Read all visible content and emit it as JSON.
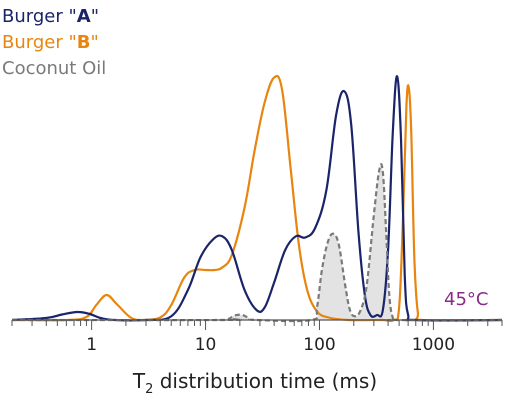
{
  "chart_data": {
    "type": "line",
    "x_scale": "log",
    "xlim": [
      0.2,
      4000
    ],
    "ylim": [
      0,
      1.0
    ],
    "x_ticks": [
      1,
      10,
      100,
      1000
    ],
    "x_tick_labels": [
      "1",
      "10",
      "100",
      "1000"
    ],
    "xlabel_main": "T",
    "xlabel_sub": "2",
    "xlabel_rest": " distribution time (ms)",
    "annotation": "45°C",
    "legend": [
      {
        "prefix": "Burger \"",
        "bold": "A",
        "suffix": "\"",
        "color": "#1a2469"
      },
      {
        "prefix": "Burger \"",
        "bold": "B",
        "suffix": "\"",
        "color": "#e8850f"
      },
      {
        "prefix": "Coconut Oil",
        "bold": "",
        "suffix": "",
        "color": "#7a7a7a"
      }
    ],
    "series": [
      {
        "name": "Burger \"A\"",
        "color": "#1a2469",
        "style": "solid",
        "points": [
          [
            0.2,
            0
          ],
          [
            0.4,
            0.008
          ],
          [
            0.55,
            0.022
          ],
          [
            0.75,
            0.032
          ],
          [
            0.95,
            0.025
          ],
          [
            1.2,
            0.008
          ],
          [
            1.6,
            0
          ],
          [
            3,
            0
          ],
          [
            5,
            0.015
          ],
          [
            7,
            0.12
          ],
          [
            9,
            0.25
          ],
          [
            11.5,
            0.32
          ],
          [
            14,
            0.335
          ],
          [
            17,
            0.28
          ],
          [
            22,
            0.12
          ],
          [
            28,
            0.04
          ],
          [
            33,
            0.05
          ],
          [
            40,
            0.15
          ],
          [
            50,
            0.28
          ],
          [
            62,
            0.335
          ],
          [
            75,
            0.33
          ],
          [
            92,
            0.37
          ],
          [
            115,
            0.52
          ],
          [
            140,
            0.82
          ],
          [
            165,
            0.915
          ],
          [
            190,
            0.78
          ],
          [
            220,
            0.35
          ],
          [
            250,
            0.1
          ],
          [
            280,
            0.02
          ],
          [
            320,
            0.02
          ],
          [
            360,
            0.04
          ],
          [
            400,
            0.28
          ],
          [
            440,
            0.75
          ],
          [
            480,
            0.975
          ],
          [
            520,
            0.72
          ],
          [
            560,
            0.18
          ],
          [
            600,
            0.02
          ],
          [
            700,
            0
          ],
          [
            4000,
            0
          ]
        ]
      },
      {
        "name": "Burger \"B\"",
        "color": "#e8850f",
        "style": "solid",
        "points": [
          [
            0.2,
            0
          ],
          [
            0.6,
            0
          ],
          [
            0.9,
            0.012
          ],
          [
            1.1,
            0.06
          ],
          [
            1.35,
            0.1
          ],
          [
            1.65,
            0.065
          ],
          [
            2.2,
            0.01
          ],
          [
            2.8,
            0
          ],
          [
            4,
            0.01
          ],
          [
            5,
            0.06
          ],
          [
            6.5,
            0.17
          ],
          [
            8,
            0.2
          ],
          [
            10,
            0.2
          ],
          [
            12,
            0.2
          ],
          [
            14,
            0.21
          ],
          [
            17,
            0.26
          ],
          [
            22,
            0.45
          ],
          [
            27,
            0.68
          ],
          [
            33,
            0.87
          ],
          [
            40,
            0.97
          ],
          [
            47,
            0.92
          ],
          [
            56,
            0.6
          ],
          [
            66,
            0.3
          ],
          [
            78,
            0.12
          ],
          [
            95,
            0.035
          ],
          [
            120,
            0.01
          ],
          [
            180,
            0
          ],
          [
            350,
            0
          ],
          [
            450,
            0
          ],
          [
            500,
            0.05
          ],
          [
            540,
            0.4
          ],
          [
            580,
            0.86
          ],
          [
            610,
            0.925
          ],
          [
            640,
            0.74
          ],
          [
            680,
            0.25
          ],
          [
            730,
            0.03
          ],
          [
            800,
            0
          ],
          [
            4000,
            0
          ]
        ]
      },
      {
        "name": "Coconut Oil",
        "color": "#7a7a7a",
        "style": "dashed",
        "filled": true,
        "points": [
          [
            0.2,
            0
          ],
          [
            14,
            0
          ],
          [
            16,
            0.005
          ],
          [
            18,
            0.018
          ],
          [
            21,
            0.02
          ],
          [
            24,
            0.008
          ],
          [
            28,
            0
          ],
          [
            85,
            0
          ],
          [
            95,
            0.05
          ],
          [
            105,
            0.2
          ],
          [
            118,
            0.31
          ],
          [
            132,
            0.345
          ],
          [
            148,
            0.3
          ],
          [
            168,
            0.14
          ],
          [
            185,
            0.04
          ],
          [
            205,
            0.015
          ],
          [
            230,
            0.04
          ],
          [
            260,
            0.14
          ],
          [
            300,
            0.42
          ],
          [
            335,
            0.6
          ],
          [
            360,
            0.59
          ],
          [
            385,
            0.35
          ],
          [
            410,
            0.1
          ],
          [
            440,
            0.01
          ],
          [
            480,
            0
          ],
          [
            4000,
            0
          ]
        ]
      }
    ]
  }
}
